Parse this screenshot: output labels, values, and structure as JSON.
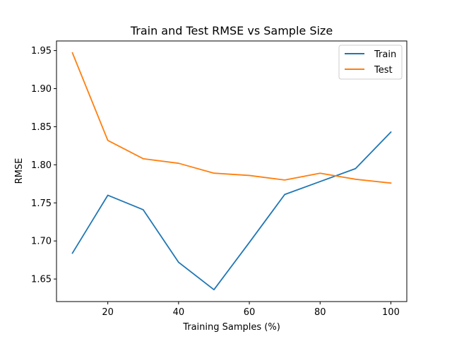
{
  "chart_data": {
    "type": "line",
    "title": "Train and Test RMSE vs Sample Size",
    "xlabel": "Training Samples (%)",
    "ylabel": "RMSE",
    "x": [
      10,
      20,
      30,
      40,
      50,
      60,
      70,
      80,
      90,
      100
    ],
    "series": [
      {
        "name": "Train",
        "color": "#1f77b4",
        "values": [
          1.684,
          1.76,
          1.741,
          1.672,
          1.636,
          1.698,
          1.761,
          1.778,
          1.795,
          1.843
        ]
      },
      {
        "name": "Test",
        "color": "#ff7f0e",
        "values": [
          1.947,
          1.832,
          1.808,
          1.802,
          1.789,
          1.786,
          1.78,
          1.789,
          1.781,
          1.776
        ]
      }
    ],
    "xlim": [
      5.5,
      104.5
    ],
    "ylim": [
      1.6204,
      1.9626
    ],
    "xticks": [
      20,
      40,
      60,
      80,
      100
    ],
    "yticks": [
      1.65,
      1.7,
      1.75,
      1.8,
      1.85,
      1.9,
      1.95
    ],
    "ytick_labels": [
      "1.65",
      "1.70",
      "1.75",
      "1.80",
      "1.85",
      "1.90",
      "1.95"
    ],
    "grid": false,
    "legend": "top-right"
  }
}
